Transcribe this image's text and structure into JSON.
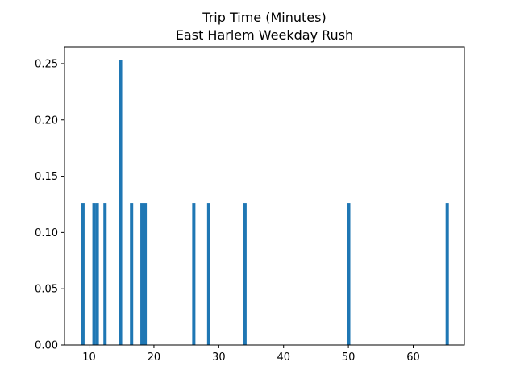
{
  "chart_data": {
    "type": "bar",
    "title": "Trip Time (Minutes)",
    "subtitle": "East Harlem Weekday Rush",
    "xlim": [
      6.2,
      67.9
    ],
    "ylim": [
      0.0,
      0.265
    ],
    "x_ticks": [
      {
        "value": 10,
        "label": "10"
      },
      {
        "value": 20,
        "label": "20"
      },
      {
        "value": 30,
        "label": "30"
      },
      {
        "value": 40,
        "label": "40"
      },
      {
        "value": 50,
        "label": "50"
      },
      {
        "value": 60,
        "label": "60"
      }
    ],
    "y_ticks": [
      {
        "value": 0.0,
        "label": "0.00"
      },
      {
        "value": 0.05,
        "label": "0.05"
      },
      {
        "value": 0.1,
        "label": "0.10"
      },
      {
        "value": 0.15,
        "label": "0.15"
      },
      {
        "value": 0.2,
        "label": "0.20"
      },
      {
        "value": 0.25,
        "label": "0.25"
      }
    ],
    "bin_width": 0.5,
    "bars": [
      {
        "x": 8.8,
        "value": 0.126
      },
      {
        "x": 10.5,
        "value": 0.126
      },
      {
        "x": 11.0,
        "value": 0.126
      },
      {
        "x": 12.2,
        "value": 0.126
      },
      {
        "x": 14.6,
        "value": 0.253
      },
      {
        "x": 16.3,
        "value": 0.126
      },
      {
        "x": 17.9,
        "value": 0.126
      },
      {
        "x": 18.4,
        "value": 0.126
      },
      {
        "x": 25.9,
        "value": 0.126
      },
      {
        "x": 28.2,
        "value": 0.126
      },
      {
        "x": 33.8,
        "value": 0.126
      },
      {
        "x": 49.8,
        "value": 0.126
      },
      {
        "x": 65.0,
        "value": 0.126
      }
    ],
    "bar_color": "#1f77b4",
    "grid": false,
    "legend": "none"
  }
}
